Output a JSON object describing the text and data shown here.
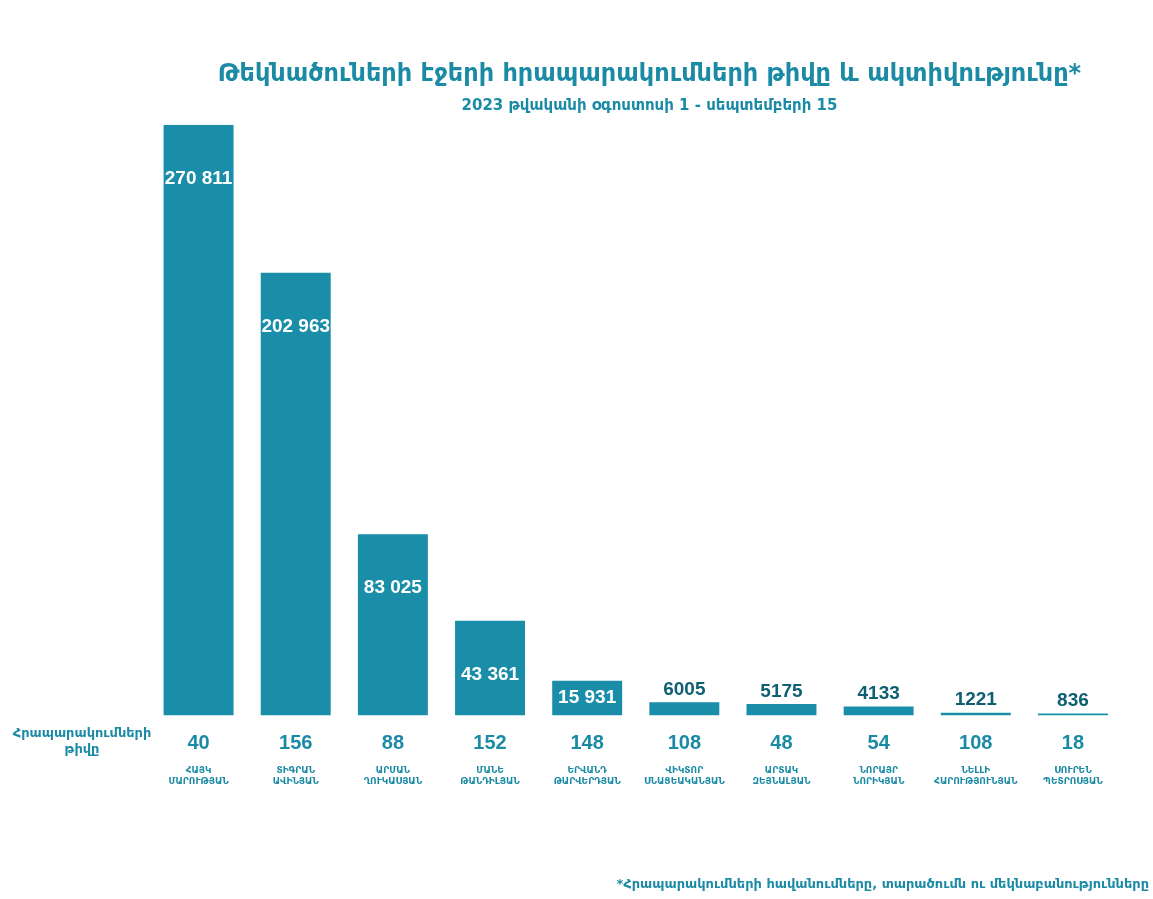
{
  "chart_data": {
    "type": "bar",
    "title": "Թեկնածուների էջերի հրապարակումների թիվը և ակտիվությունը*",
    "subtitle": "2023 թվականի օգոստոսի 1 - սեպտեմբերի 15",
    "categories": [
      "ՀԱՅԿ ՄԱՐՈՒԹՅԱՆ",
      "ՏԻԳՐԱՆ ԱՎԻՆՅԱՆ",
      "ԱՐՄԱՆ ՂՈՒԿԱՍՅԱՆ",
      "ՄԱՆԵ ԹԱՆԴԻԼՅԱՆ",
      "ԵՐՎԱՆԴ ԹԱՐՎԵՐԴՅԱՆ",
      "ՎԻԿՏՈՐ ՍՆԱՑԵԱԿԱՆՅԱՆ",
      "ԱՐՏԱԿ ԶԵՅՆԱԼՅԱՆ",
      "ՆՈՐԱՅՐ ՆՈՐԻԿՅԱՆ",
      "ՆԵԼԼԻ ՀԱՐՈՒԹՅՈՒՆՅԱՆ",
      "ՍՈՒՐԵՆ ՊԵՏՐՈՍՅԱՆ"
    ],
    "values": [
      270811,
      202963,
      83025,
      43361,
      15931,
      6005,
      5175,
      4133,
      1221,
      836
    ],
    "value_labels": [
      "270 811",
      "202 963",
      "83 025",
      "43 361",
      "15 931",
      "6005",
      "5175",
      "4133",
      "1221",
      "836"
    ],
    "color": "#1a8ea8",
    "annotations": [
      "Հրապարակումների թիվը",
      "40",
      "156",
      "88",
      "152",
      "148",
      "108",
      "48",
      "54",
      "108",
      "18",
      "*Հրապարակումների հավանումները, տարածումն ու մեկնաբանությունները"
    ],
    "grid": false,
    "legend": false
  }
}
